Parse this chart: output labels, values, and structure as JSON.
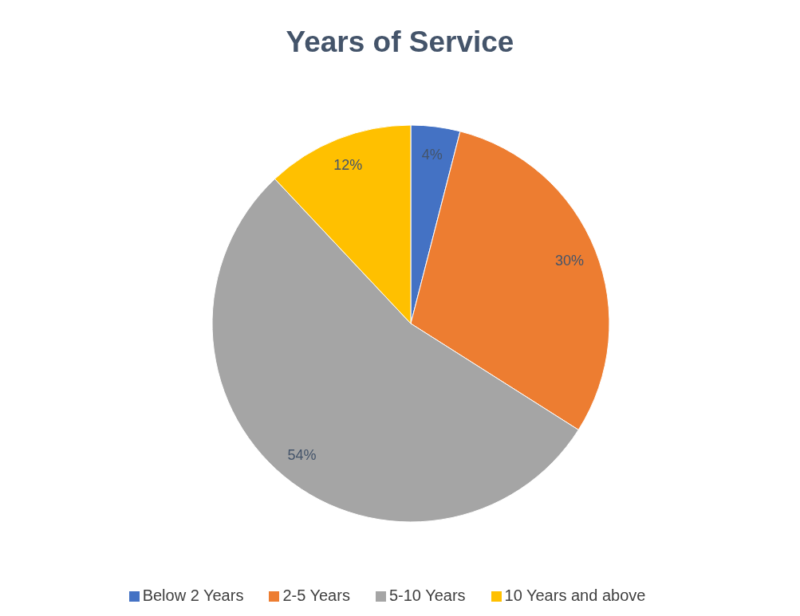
{
  "chart_data": {
    "type": "pie",
    "title": "Years of Service",
    "categories": [
      "Below 2 Years",
      "2-5 Years",
      "5-10 Years",
      "10 Years and above"
    ],
    "values": [
      4,
      30,
      54,
      12
    ],
    "colors": [
      "#4472c4",
      "#ed7d31",
      "#a5a5a5",
      "#ffc000"
    ],
    "value_labels": [
      "4%",
      "30%",
      "54%",
      "12%"
    ],
    "legend": "bottom"
  }
}
